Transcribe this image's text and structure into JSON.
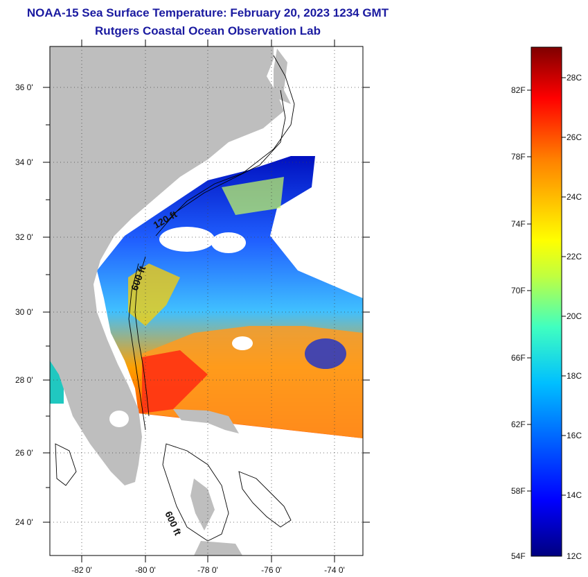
{
  "title": {
    "line1": "NOAA-15 Sea Surface Temperature:  February 20, 2023 1234 GMT",
    "line2": "Rutgers Coastal Ocean Observation Lab"
  },
  "map": {
    "latitude_labels": [
      "36 0'",
      "34 0'",
      "32 0'",
      "30 0'",
      "28 0'",
      "26 0'",
      "24 0'"
    ],
    "longitude_labels": [
      "-82 0'",
      "-80 0'",
      "-78 0'",
      "-76 0'",
      "-74 0'"
    ],
    "contour_labels": {
      "c120": "120 ft",
      "c600a": "600 ft",
      "c600b": "600 ft"
    },
    "colors": {
      "land": "#bebebe",
      "no_data": "#ffffff",
      "frame": "#000000"
    }
  },
  "colorbar": {
    "fahrenheit_labels": [
      "82F",
      "78F",
      "74F",
      "70F",
      "66F",
      "62F",
      "58F",
      "54F"
    ],
    "celsius_labels": [
      "28C",
      "26C",
      "24C",
      "22C",
      "20C",
      "18C",
      "16C",
      "14C",
      "12C"
    ],
    "range_c": [
      12,
      29
    ],
    "colors": [
      "#00007f",
      "#0000ff",
      "#007fff",
      "#00ffff",
      "#7fff7f",
      "#ffff00",
      "#ff7f00",
      "#ff0000",
      "#7f0000"
    ]
  }
}
